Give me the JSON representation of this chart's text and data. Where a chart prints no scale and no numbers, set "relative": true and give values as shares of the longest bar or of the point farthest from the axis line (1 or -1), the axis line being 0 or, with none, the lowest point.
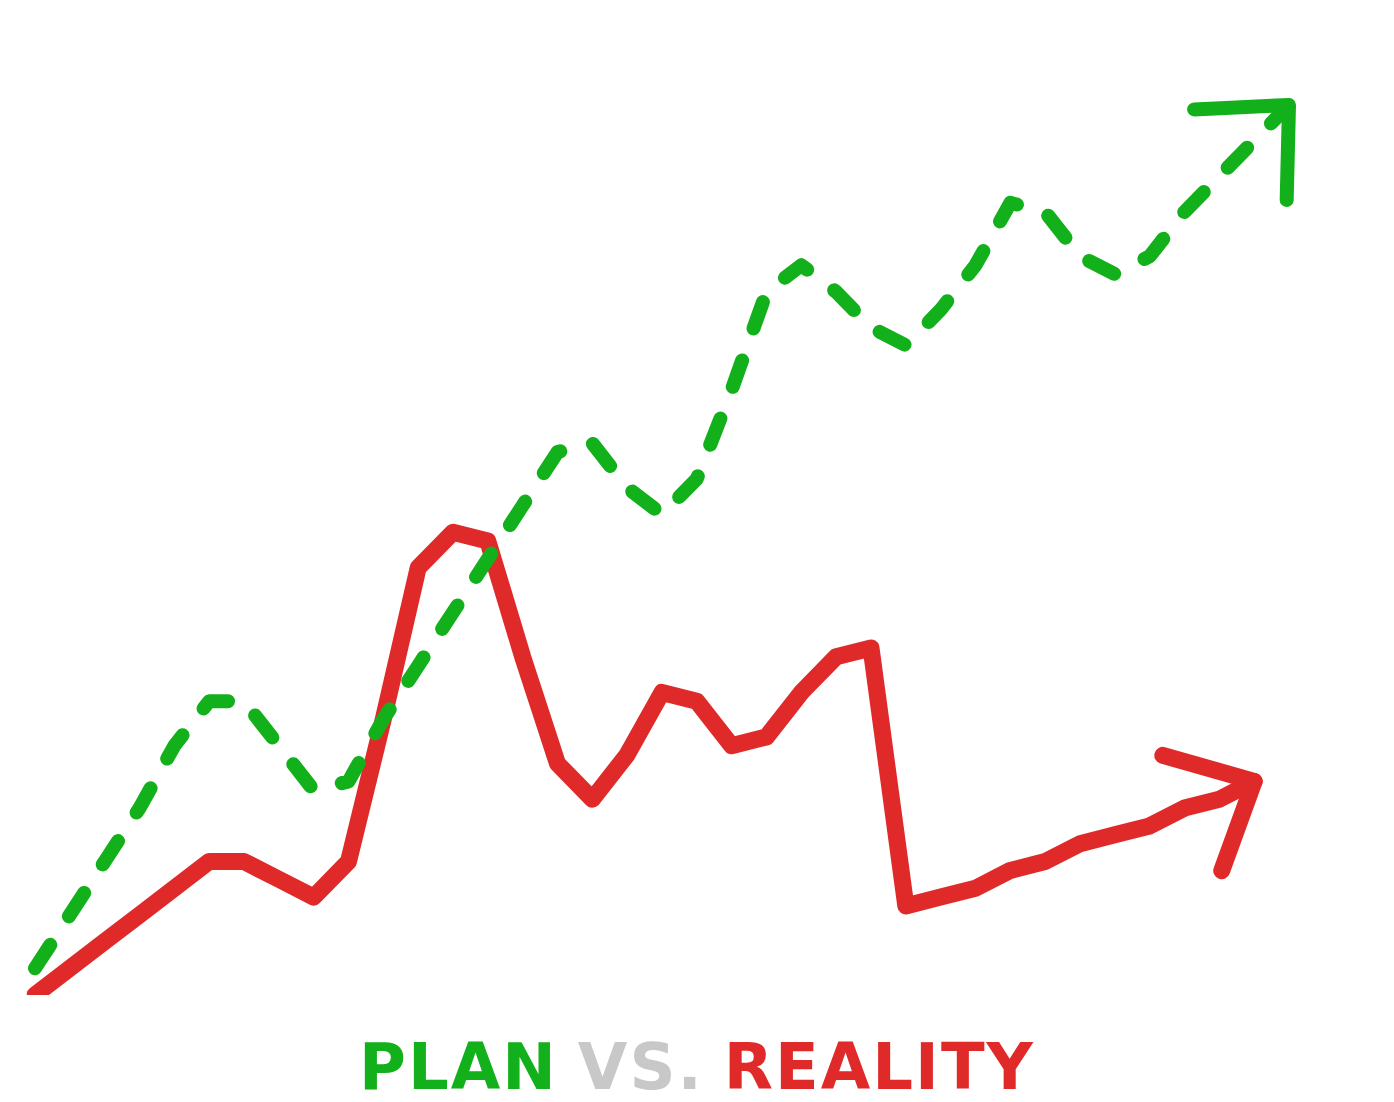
{
  "chart_data": {
    "type": "line",
    "title": "PLAN VS. REALITY",
    "relative": true,
    "legend": false,
    "marker": "none",
    "categories": [
      null,
      null,
      null,
      null,
      null,
      null,
      null,
      null,
      null,
      null,
      null,
      null,
      null,
      null,
      null,
      null,
      null,
      null,
      null,
      null,
      null,
      null,
      null,
      null,
      null,
      null,
      null,
      null,
      null,
      null,
      null,
      null,
      null,
      null,
      null,
      null,
      null
    ],
    "series": [
      {
        "color": "#12b01a",
        "line_style": "dashed",
        "values": [
          0.03,
          0.09,
          0.15,
          0.21,
          0.28,
          0.33,
          0.33,
          0.28,
          0.23,
          0.24,
          0.31,
          0.37,
          0.43,
          0.49,
          0.55,
          0.61,
          0.62,
          0.57,
          0.54,
          0.58,
          0.68,
          0.79,
          0.82,
          0.79,
          0.75,
          0.73,
          0.77,
          0.82,
          0.89,
          0.88,
          0.83,
          0.81,
          0.83,
          0.88,
          0.92,
          0.96,
          1.0
        ]
      },
      {
        "color": "#e02a2a",
        "line_style": "solid",
        "values": [
          0,
          0.03,
          0.06,
          0.09,
          0.12,
          0.15,
          0.15,
          0.13,
          0.11,
          0.15,
          0.31,
          0.48,
          0.52,
          0.51,
          0.38,
          0.26,
          0.22,
          0.27,
          0.34,
          0.33,
          0.28,
          0.29,
          0.34,
          0.38,
          0.39,
          0.1,
          0.11,
          0.12,
          0.14,
          0.15,
          0.17,
          0.18,
          0.19,
          0.21,
          0.22,
          0.24,
          null
        ]
      }
    ]
  }
}
